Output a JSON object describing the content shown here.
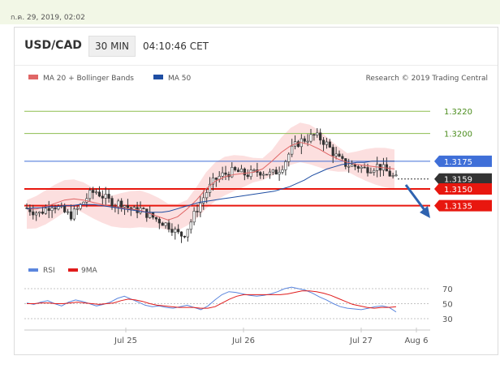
{
  "header": {
    "datetime": "ก.ค. 29, 2019, 02:02",
    "symbol": "USD/CAD",
    "timeframe": "30 MIN",
    "clock": "04:10:46 CET"
  },
  "legend": {
    "ma20": "MA 20 + Bollinger Bands",
    "ma50": "MA 50",
    "credit": "Research © 2019 Trading Central",
    "rsi": "RSI",
    "ma9": "9MA"
  },
  "colors": {
    "resistance_blue": "#3f6fd8",
    "support_red": "#e8170f",
    "target_green": "#8dbd4f",
    "current_price": "#333333",
    "arrow": "#2f63b0",
    "ma50": "#1f4ea3",
    "ma20": "#e06666",
    "bollinger_fill": "#fbd4d4",
    "rsi": "#5b86de",
    "rsi_ma": "#e01b1b"
  },
  "chart_data": [
    {
      "type": "candlestick",
      "title": "USD/CAD",
      "ylim": [
        1.3085,
        1.3245
      ],
      "x_ticks": [
        "Jul 25",
        "Jul 26",
        "Jul 27",
        "Aug 6"
      ],
      "levels": [
        {
          "label": "1.3220",
          "value": 1.322,
          "kind": "target",
          "color": "#8dbd4f"
        },
        {
          "label": "1.3200",
          "value": 1.32,
          "kind": "target",
          "color": "#8dbd4f"
        },
        {
          "label": "1.3175",
          "value": 1.3175,
          "kind": "resistance",
          "color": "#3f6fd8"
        },
        {
          "label": "1.3159",
          "value": 1.3159,
          "kind": "current",
          "color": "#333333"
        },
        {
          "label": "1.3150",
          "value": 1.315,
          "kind": "support",
          "color": "#e8170f"
        },
        {
          "label": "1.3135",
          "value": 1.3135,
          "kind": "support",
          "color": "#e8170f"
        }
      ],
      "close_path": [
        1.3133,
        1.313,
        1.3128,
        1.3132,
        1.3136,
        1.3133,
        1.3129,
        1.3126,
        1.3131,
        1.3138,
        1.3145,
        1.3148,
        1.3144,
        1.314,
        1.3136,
        1.3138,
        1.3134,
        1.313,
        1.3132,
        1.3128,
        1.3125,
        1.3122,
        1.3119,
        1.3116,
        1.311,
        1.3108,
        1.3118,
        1.313,
        1.314,
        1.315,
        1.3158,
        1.3162,
        1.3164,
        1.3166,
        1.3165,
        1.3163,
        1.3164,
        1.3166,
        1.3165,
        1.3163,
        1.3166,
        1.3172,
        1.3183,
        1.319,
        1.3194,
        1.3196,
        1.3198,
        1.3195,
        1.319,
        1.3182,
        1.3176,
        1.3172,
        1.3171,
        1.317,
        1.3168,
        1.3169,
        1.3171,
        1.3168,
        1.3163,
        1.3159
      ],
      "ma50_path": [
        1.3132,
        1.3133,
        1.3133,
        1.3134,
        1.3134,
        1.3135,
        1.3135,
        1.3136,
        1.3136,
        1.3136,
        1.3135,
        1.3134,
        1.3133,
        1.3132,
        1.3131,
        1.313,
        1.3129,
        1.3129,
        1.3129,
        1.313,
        1.3132,
        1.3134,
        1.3136,
        1.3138,
        1.3139,
        1.314,
        1.3141,
        1.3142,
        1.3143,
        1.3144,
        1.3145,
        1.3146,
        1.3147,
        1.3148,
        1.315,
        1.3152,
        1.3155,
        1.3158,
        1.3162,
        1.3165,
        1.3168,
        1.317,
        1.3172,
        1.3173,
        1.3174,
        1.3174,
        1.3175,
        1.3175,
        1.3175,
        1.3175
      ],
      "ma20_path": [
        1.3132,
        1.3132,
        1.3134,
        1.3137,
        1.314,
        1.3141,
        1.314,
        1.3138,
        1.3136,
        1.3134,
        1.3133,
        1.3132,
        1.3131,
        1.3128,
        1.3125,
        1.3122,
        1.3125,
        1.3132,
        1.314,
        1.315,
        1.3157,
        1.3161,
        1.3163,
        1.3164,
        1.3165,
        1.3168,
        1.3175,
        1.3183,
        1.3189,
        1.3192,
        1.319,
        1.3186,
        1.3181,
        1.3177,
        1.3174,
        1.3172,
        1.3171,
        1.317,
        1.3169,
        1.3168
      ]
    },
    {
      "type": "line",
      "title": "RSI",
      "ylim": [
        30,
        70
      ],
      "y_ticks": [
        70,
        50,
        30
      ],
      "series": [
        {
          "name": "RSI",
          "color": "#5b86de",
          "values": [
            51,
            49,
            52,
            54,
            50,
            47,
            52,
            55,
            53,
            50,
            47,
            49,
            52,
            57,
            60,
            56,
            52,
            48,
            46,
            47,
            45,
            44,
            46,
            48,
            45,
            42,
            47,
            55,
            62,
            66,
            65,
            63,
            61,
            60,
            61,
            63,
            66,
            70,
            72,
            70,
            68,
            64,
            59,
            55,
            50,
            46,
            44,
            43,
            42,
            44,
            46,
            47,
            45,
            39
          ]
        },
        {
          "name": "9MA",
          "color": "#e01b1b",
          "values": [
            50,
            50,
            51,
            51,
            50,
            50,
            51,
            52,
            51,
            50,
            49,
            50,
            51,
            54,
            56,
            55,
            53,
            50,
            48,
            47,
            46,
            45,
            45,
            45,
            44,
            44,
            46,
            51,
            56,
            60,
            62,
            62,
            62,
            62,
            62,
            62,
            63,
            65,
            67,
            67,
            66,
            64,
            61,
            57,
            53,
            49,
            47,
            45,
            44,
            45,
            45,
            46
          ]
        }
      ]
    }
  ]
}
